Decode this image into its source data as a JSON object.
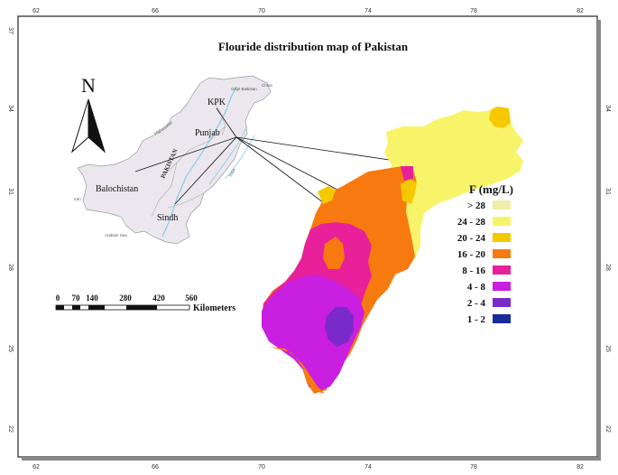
{
  "title": "Flouride distribution map of Pakistan",
  "grid": {
    "top_ticks": [
      "62",
      "66",
      "70",
      "74",
      "78",
      "82"
    ],
    "bottom_ticks": [
      "62",
      "66",
      "70",
      "74",
      "78",
      "82"
    ],
    "left_ticks": [
      "37",
      "34",
      "31",
      "28",
      "25",
      "22"
    ],
    "right_ticks": [
      "34",
      "31",
      "28",
      "25",
      "22"
    ]
  },
  "north_arrow": {
    "label": "N"
  },
  "inset": {
    "province_labels": [
      "KPK",
      "Punjab",
      "Balochistan",
      "Sindh"
    ],
    "country_label": "PAKISTAN",
    "small_labels": [
      "Gilgit Baltistan",
      "China",
      "Afghanistan",
      "Iran",
      "India",
      "Arabian Sea"
    ]
  },
  "scale_bar": {
    "ticks": [
      "0",
      "70",
      "140",
      "280",
      "420",
      "560"
    ],
    "unit": "Kilometers"
  },
  "legend": {
    "title": "F (mg/L)",
    "items": [
      {
        "label": "> 28",
        "color": "#f0eea8"
      },
      {
        "label": "24 - 28",
        "color": "#f8f46a"
      },
      {
        "label": "20 - 24",
        "color": "#f6c800"
      },
      {
        "label": "16 - 20",
        "color": "#f77a10"
      },
      {
        "label": "8 - 16",
        "color": "#e8209a"
      },
      {
        "label": "4 - 8",
        "color": "#c81fe0"
      },
      {
        "label": "2 - 4",
        "color": "#7a2ac8"
      },
      {
        "label": "1 - 2",
        "color": "#1a2a9a"
      }
    ]
  }
}
